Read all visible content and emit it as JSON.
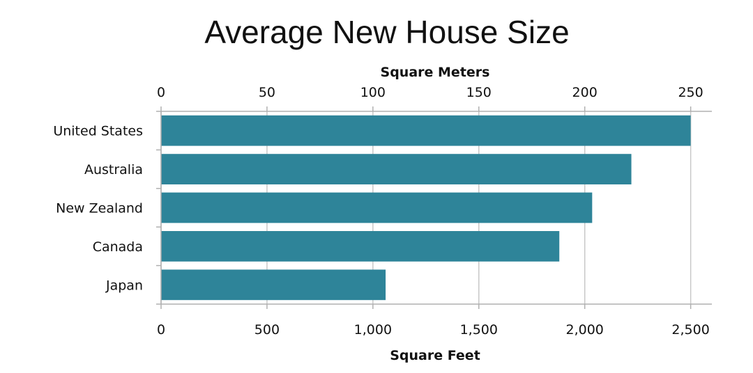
{
  "chart_data": {
    "type": "bar",
    "orientation": "horizontal",
    "title": "Average New House Size",
    "categories": [
      "United States",
      "Australia",
      "New Zealand",
      "Canada",
      "Japan"
    ],
    "series": [
      {
        "values": [
          2500,
          2220,
          2035,
          1880,
          1060
        ],
        "color": "#2e8499"
      }
    ],
    "xlabel": "Square Feet",
    "xlim": [
      0,
      2600
    ],
    "xticks": [
      0,
      500,
      1000,
      1500,
      2000,
      2500
    ],
    "xtick_labels": [
      "0",
      "500",
      "1,000",
      "1,500",
      "2,000",
      "2,500"
    ],
    "x2label": "Square Meters",
    "x2lim": [
      0,
      250
    ],
    "x2ticks": [
      0,
      50,
      100,
      150,
      200,
      250
    ],
    "x2tick_labels": [
      "0",
      "50",
      "100",
      "150",
      "200",
      "250"
    ],
    "grid": true,
    "legend": "none"
  }
}
